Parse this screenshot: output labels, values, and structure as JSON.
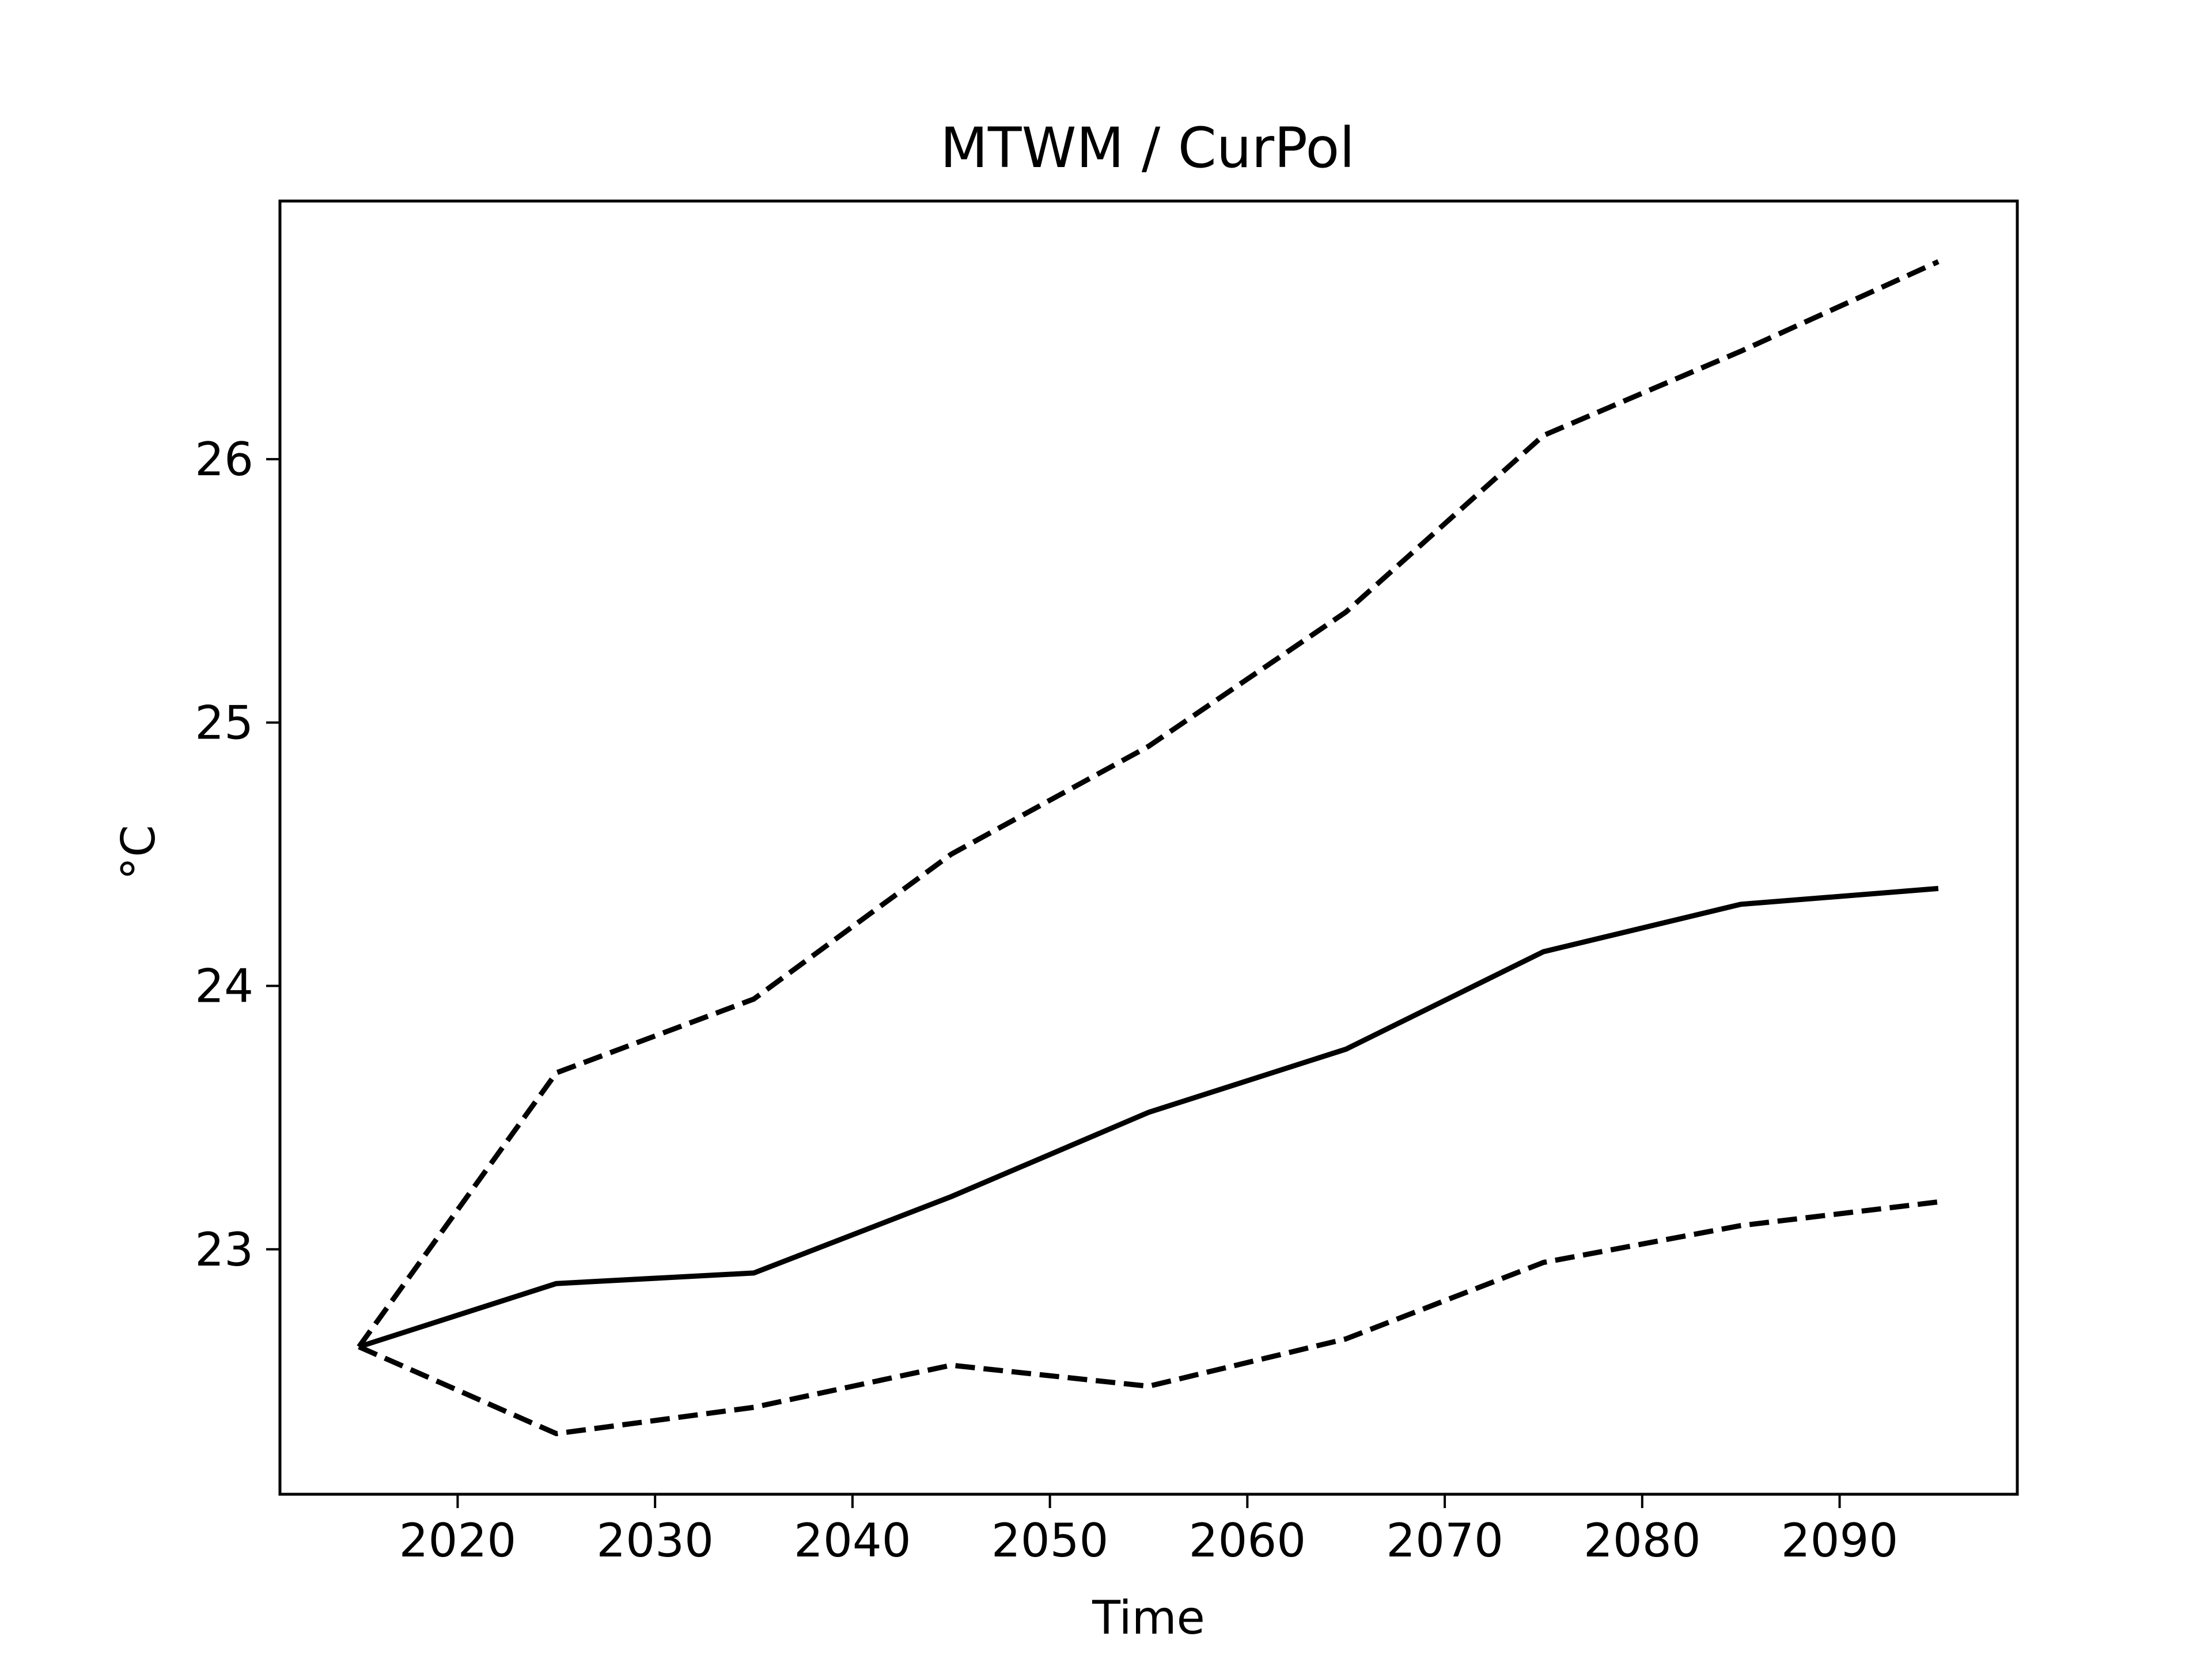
{
  "chart_data": {
    "type": "line",
    "title": "MTWM / CurPol",
    "xlabel": "Time",
    "ylabel": "°C",
    "xlim": [
      2011,
      2099
    ],
    "ylim": [
      22.07,
      26.98
    ],
    "xticks": [
      2020,
      2030,
      2040,
      2050,
      2060,
      2070,
      2080,
      2090
    ],
    "yticks": [
      23,
      24,
      25,
      26
    ],
    "grid": false,
    "legend": false,
    "x": [
      2015,
      2025,
      2035,
      2045,
      2055,
      2065,
      2075,
      2085,
      2095
    ],
    "series": [
      {
        "style": "dashed",
        "color": "#000000",
        "values": [
          22.63,
          23.67,
          23.95,
          24.5,
          24.91,
          25.42,
          26.09,
          26.41,
          26.75
        ]
      },
      {
        "style": "solid",
        "color": "#000000",
        "values": [
          22.63,
          22.87,
          22.91,
          23.2,
          23.52,
          23.76,
          24.13,
          24.31,
          24.37
        ]
      },
      {
        "style": "dashed",
        "color": "#000000",
        "values": [
          22.63,
          22.3,
          22.4,
          22.56,
          22.48,
          22.66,
          22.95,
          23.09,
          23.18
        ]
      }
    ]
  }
}
